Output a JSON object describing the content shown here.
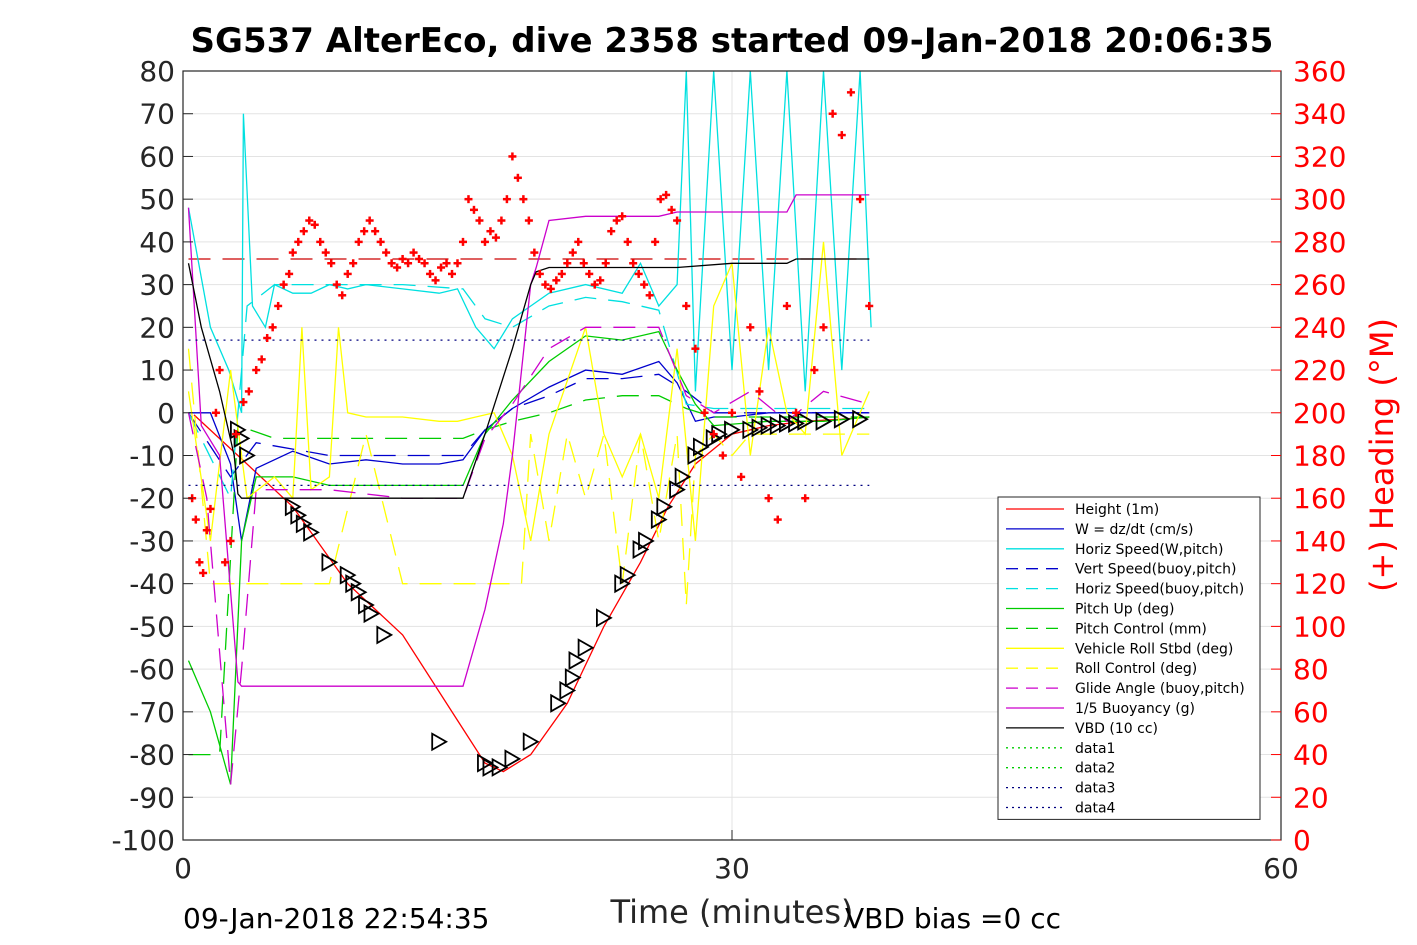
{
  "chart_data": {
    "type": "line",
    "title": "SG537 AlterEco, dive 2358 started 09-Jan-2018 20:06:35",
    "xlabel": "Time (minutes)",
    "ylabel_right": "(+) Heading (°M)",
    "xlim": [
      0,
      60
    ],
    "ylim_left": [
      -100,
      80
    ],
    "ylim_right": [
      0,
      360
    ],
    "x_ticks": [
      "0",
      "30",
      "60"
    ],
    "y_ticks_left": [
      "80",
      "70",
      "60",
      "50",
      "40",
      "30",
      "20",
      "10",
      "0",
      "-10",
      "-20",
      "-30",
      "-40",
      "-50",
      "-60",
      "-70",
      "-80",
      "-90",
      "-100"
    ],
    "y_ticks_right": [
      "360",
      "340",
      "320",
      "300",
      "280",
      "260",
      "240",
      "220",
      "200",
      "180",
      "160",
      "140",
      "120",
      "100",
      "80",
      "60",
      "40",
      "20",
      "0"
    ],
    "grid": true,
    "legend_position": "bottom-right",
    "footer_left": "09-Jan-2018 22:54:35",
    "footer_right": "VBD bias =0 cc",
    "series": [
      {
        "name": "Height (1m)",
        "color": "#ff0000",
        "style": "solid",
        "x": [
          0.6,
          3,
          6,
          9,
          12,
          15,
          16.5,
          17.5,
          19,
          21,
          23,
          25,
          26.5,
          28,
          30,
          32,
          34,
          36,
          37.5
        ],
        "y": [
          -0.5,
          -10,
          -22,
          -40,
          -52,
          -72,
          -82,
          -84,
          -80,
          -68,
          -50,
          -35,
          -22,
          -12,
          -5,
          -3,
          -2,
          -1.5,
          -1
        ]
      },
      {
        "name": "W = dz/dt (cm/s)",
        "color": "#0000cd",
        "style": "solid",
        "x": [
          0.3,
          1.5,
          2.6,
          3.2,
          4,
          6,
          8,
          10,
          12,
          14,
          15.3,
          16.5,
          18,
          20,
          22,
          24,
          26,
          27,
          28,
          29,
          30,
          32,
          34,
          36,
          37.5
        ],
        "y": [
          0,
          0,
          -12,
          -30,
          -13,
          -9,
          -12,
          -11,
          -12,
          -12,
          -11,
          -4,
          1,
          6,
          10,
          9,
          12,
          7,
          -2,
          -1,
          -1,
          0,
          0,
          0,
          0
        ]
      },
      {
        "name": "Horiz Speed(W,pitch)",
        "color": "#00e0e0",
        "style": "solid",
        "x": [
          0.3,
          1.5,
          2.5,
          3.2,
          3.3,
          3.8,
          4.5,
          5,
          6,
          7,
          8,
          9,
          10,
          12,
          14,
          15,
          16,
          17,
          18,
          19,
          20,
          22,
          24,
          25,
          26,
          27,
          27.5,
          28,
          29,
          30,
          31,
          32,
          33,
          34,
          35,
          36,
          37,
          37.6
        ],
        "y": [
          48,
          20,
          10,
          0,
          70,
          25,
          20,
          30,
          28,
          28,
          30,
          29,
          30,
          29,
          28,
          29,
          20,
          15,
          22,
          25,
          28,
          30,
          28,
          35,
          25,
          30,
          80,
          5,
          80,
          10,
          80,
          10,
          80,
          5,
          80,
          10,
          80,
          20
        ]
      },
      {
        "name": "Vert Speed(buoy,pitch)",
        "color": "#0000cd",
        "style": "dashed",
        "x": [
          0.3,
          2.6,
          4,
          8,
          12,
          15.3,
          16.5,
          18,
          20,
          22,
          24,
          26,
          27.5,
          29,
          32,
          35,
          37.5
        ],
        "y": [
          0,
          -15,
          -7,
          -10,
          -10,
          -10,
          -4,
          1,
          4,
          8,
          8,
          9,
          5,
          0,
          0,
          0,
          0
        ]
      },
      {
        "name": "Horiz Speed(buoy,pitch)",
        "color": "#00e0e0",
        "style": "dashed",
        "x": [
          0.3,
          2.6,
          3.5,
          5,
          9,
          12,
          15.3,
          16.5,
          18,
          20,
          22,
          24,
          26,
          27.5,
          29,
          33,
          37.5
        ],
        "y": [
          0,
          -20,
          25,
          30,
          30,
          30,
          29,
          22,
          20,
          25,
          27,
          26,
          24,
          2,
          1,
          1,
          1
        ]
      },
      {
        "name": "Pitch Up (deg)",
        "color": "#00cc00",
        "style": "solid",
        "x": [
          0.3,
          1.5,
          2.6,
          3.2,
          4,
          6,
          8,
          10,
          12,
          14,
          15.3,
          16.5,
          18,
          20,
          22,
          24,
          26,
          27,
          28,
          29,
          32,
          35,
          37.5
        ],
        "y": [
          -58,
          -70,
          -87,
          -30,
          -15,
          -15,
          -17,
          -17,
          -17,
          -17,
          -17,
          -5,
          3,
          12,
          18,
          17,
          19,
          10,
          2,
          -3,
          -2,
          -2,
          -1
        ]
      },
      {
        "name": "Pitch Control (mm)",
        "color": "#00cc00",
        "style": "dashed",
        "x": [
          0.3,
          2,
          3,
          5,
          9,
          12,
          15.3,
          16.5,
          18,
          20,
          22,
          24,
          26,
          27.5,
          29,
          37.5
        ],
        "y": [
          -80,
          -80,
          -3,
          -6,
          -6,
          -6,
          -6,
          -4,
          -2,
          0,
          3,
          4,
          4,
          1,
          -1,
          -1
        ]
      },
      {
        "name": "Vehicle Roll Stbd (deg)",
        "color": "#ffff00",
        "style": "solid",
        "x": [
          0.3,
          1.5,
          2.6,
          3.5,
          5,
          6,
          6.5,
          7,
          8,
          8.5,
          9,
          10,
          12,
          14,
          15,
          16,
          17,
          18,
          19,
          20,
          22,
          23,
          24,
          25,
          26,
          27,
          28,
          29,
          30,
          31,
          32,
          33,
          34,
          35,
          36,
          37.5
        ],
        "y": [
          5,
          -30,
          10,
          -20,
          -15,
          -20,
          20,
          -18,
          -15,
          20,
          0,
          -1,
          -1,
          -2,
          -2,
          -1,
          0,
          -10,
          -30,
          -5,
          20,
          -5,
          -15,
          -5,
          -20,
          15,
          -30,
          25,
          35,
          -10,
          20,
          0,
          -5,
          40,
          -10,
          5
        ]
      },
      {
        "name": "Roll Control (deg)",
        "color": "#ffff00",
        "style": "dashed",
        "x": [
          0.3,
          1.5,
          2.6,
          4,
          6,
          8,
          10,
          12,
          14,
          16,
          18,
          18.5,
          19,
          20,
          21,
          22,
          23,
          24,
          25,
          26,
          27,
          27.5,
          28,
          29,
          30,
          31,
          33,
          35,
          37.5
        ],
        "y": [
          15,
          -40,
          -40,
          -40,
          -40,
          -40,
          -5,
          -40,
          -40,
          -40,
          -40,
          -40,
          -5,
          -30,
          -5,
          -20,
          -5,
          -40,
          -5,
          -30,
          -5,
          -45,
          -10,
          -5,
          -10,
          -5,
          -5,
          -5,
          -5
        ]
      },
      {
        "name": "Glide Angle (buoy,pitch)",
        "color": "#cc00cc",
        "style": "dashed",
        "x": [
          0.3,
          1.3,
          2.6,
          3.2,
          4,
          8,
          12,
          15.3,
          16.5,
          18,
          20,
          22,
          24,
          26,
          27.5,
          29,
          31,
          33,
          35,
          37.5
        ],
        "y": [
          0,
          -20,
          -87,
          -60,
          -18,
          -18,
          -20,
          -20,
          -6,
          2,
          15,
          20,
          20,
          20,
          4,
          0,
          5,
          -2,
          5,
          2
        ]
      },
      {
        "name": "1/5 Buoyancy (g)",
        "color": "#cc00cc",
        "style": "solid",
        "x": [
          0.3,
          1,
          2,
          3,
          3.2,
          4,
          8,
          12,
          14,
          15.3,
          16.5,
          17.5,
          18,
          19,
          19.3,
          20,
          22,
          24,
          26,
          27,
          30,
          32,
          33,
          33.5,
          37.5
        ],
        "y": [
          48,
          -3,
          -10,
          -63,
          -64,
          -64,
          -64,
          -64,
          -64,
          -64,
          -46,
          -26,
          -10,
          30,
          34,
          45,
          46,
          46,
          46,
          47,
          47,
          47,
          47,
          51,
          51
        ]
      },
      {
        "name": "VBD (10 cc)",
        "color": "#000000",
        "style": "solid",
        "x": [
          0.3,
          1,
          2,
          2.8,
          3,
          3.2,
          4,
          8,
          12,
          14,
          15.3,
          16.5,
          18,
          19,
          19.3,
          20,
          22,
          24,
          26,
          27,
          30,
          32,
          33,
          33.5,
          37.5
        ],
        "y": [
          35,
          20,
          5,
          -10,
          -19,
          -20,
          -20,
          -20,
          -20,
          -20,
          -20,
          -5,
          15,
          30,
          33,
          34,
          34,
          34,
          34,
          34,
          35,
          35,
          35,
          36,
          36
        ]
      },
      {
        "name": "data1",
        "color": "#00cc00",
        "style": "dotted",
        "x": [],
        "y": []
      },
      {
        "name": "data2",
        "color": "#00cc00",
        "style": "dotted",
        "x": [],
        "y": []
      },
      {
        "name": "data3",
        "color": "#000080",
        "style": "dotted",
        "x": [
          0.3,
          37.5
        ],
        "y": [
          17,
          17
        ]
      },
      {
        "name": "data4",
        "color": "#000080",
        "style": "dotted",
        "x": [
          0.3,
          37.5
        ],
        "y": [
          -17,
          -17
        ]
      }
    ],
    "reference_lines": [
      {
        "color": "#cc0000",
        "style": "dashed",
        "x": [
          0.3,
          37.5
        ],
        "y": [
          36,
          36
        ]
      }
    ],
    "markers": {
      "triangles": {
        "color": "#000000",
        "x": [
          3,
          3.2,
          3.5,
          6,
          6.3,
          6.6,
          7,
          8,
          9,
          9.3,
          9.6,
          10,
          10.3,
          11,
          14,
          16.5,
          16.8,
          17.3,
          18,
          19,
          20.5,
          21,
          21.3,
          21.5,
          22,
          23,
          24,
          24.3,
          25,
          25.3,
          26,
          26.3,
          27,
          27.3,
          28,
          28.3,
          29,
          29.3,
          30,
          31,
          31.5,
          32,
          32.5,
          33,
          33.5,
          34,
          35,
          36,
          37
        ],
        "y": [
          -4,
          -6,
          -10,
          -22,
          -24,
          -26,
          -28,
          -35,
          -38,
          -40,
          -42,
          -45,
          -47,
          -52,
          -77,
          -82,
          -83,
          -83,
          -81,
          -77,
          -68,
          -65,
          -62,
          -58,
          -55,
          -48,
          -40,
          -38,
          -32,
          -30,
          -25,
          -22,
          -18,
          -15,
          -10,
          -8,
          -6,
          -5,
          -4,
          -4,
          -3.5,
          -3,
          -3,
          -2.5,
          -2.5,
          -2,
          -2,
          -1.5,
          -1.5
        ]
      },
      "heading_crosses": {
        "color": "#ff0000",
        "axis": "right",
        "x": [
          0.5,
          0.7,
          0.9,
          1.1,
          1.3,
          1.5,
          1.8,
          2.0,
          2.3,
          2.6,
          2.9,
          3.3,
          3.6,
          4.0,
          4.3,
          4.6,
          4.9,
          5.2,
          5.5,
          5.8,
          6.0,
          6.3,
          6.6,
          6.9,
          7.2,
          7.5,
          7.8,
          8.1,
          8.4,
          8.7,
          9.0,
          9.3,
          9.6,
          9.9,
          10.2,
          10.5,
          10.8,
          11.1,
          11.4,
          11.7,
          12.0,
          12.3,
          12.6,
          12.9,
          13.2,
          13.5,
          13.8,
          14.1,
          14.4,
          14.7,
          15.0,
          15.3,
          15.6,
          15.9,
          16.2,
          16.5,
          16.8,
          17.1,
          17.4,
          17.7,
          18.0,
          18.3,
          18.6,
          18.9,
          19.2,
          19.5,
          19.8,
          20.1,
          20.4,
          20.7,
          21.0,
          21.3,
          21.6,
          21.9,
          22.2,
          22.5,
          22.8,
          23.1,
          23.4,
          23.7,
          24.0,
          24.3,
          24.6,
          24.9,
          25.2,
          25.5,
          25.8,
          26.1,
          26.4,
          26.7,
          27.0,
          27.5,
          28.0,
          28.5,
          29.0,
          29.5,
          30.0,
          30.5,
          31.0,
          31.5,
          32.0,
          32.5,
          33.0,
          33.5,
          34.0,
          34.5,
          35.0,
          35.5,
          36.0,
          36.5,
          37.0,
          37.5
        ],
        "y": [
          160,
          150,
          130,
          125,
          145,
          155,
          200,
          220,
          130,
          140,
          190,
          205,
          210,
          220,
          225,
          235,
          240,
          250,
          260,
          265,
          275,
          280,
          285,
          290,
          288,
          280,
          275,
          270,
          260,
          255,
          265,
          270,
          280,
          285,
          290,
          285,
          280,
          275,
          270,
          268,
          272,
          270,
          275,
          272,
          270,
          265,
          262,
          268,
          270,
          265,
          270,
          280,
          300,
          295,
          290,
          280,
          285,
          282,
          290,
          300,
          320,
          310,
          300,
          290,
          275,
          265,
          260,
          258,
          262,
          265,
          270,
          275,
          280,
          270,
          265,
          260,
          262,
          270,
          285,
          290,
          292,
          280,
          270,
          265,
          260,
          255,
          280,
          300,
          302,
          295,
          290,
          250,
          230,
          200,
          190,
          180,
          200,
          170,
          240,
          210,
          160,
          150,
          250,
          200,
          160,
          220,
          240,
          340,
          330,
          350,
          300,
          250
        ]
      }
    },
    "legend": [
      "Height (1m)",
      "W = dz/dt (cm/s)",
      "Horiz Speed(W,pitch)",
      "Vert Speed(buoy,pitch)",
      "Horiz Speed(buoy,pitch)",
      "Pitch Up (deg)",
      "Pitch Control (mm)",
      "Vehicle Roll Stbd (deg)",
      "Roll Control (deg)",
      "Glide Angle (buoy,pitch)",
      "1/5 Buoyancy (g)",
      "VBD (10 cc)",
      "data1",
      "data2",
      "data3",
      "data4"
    ]
  }
}
